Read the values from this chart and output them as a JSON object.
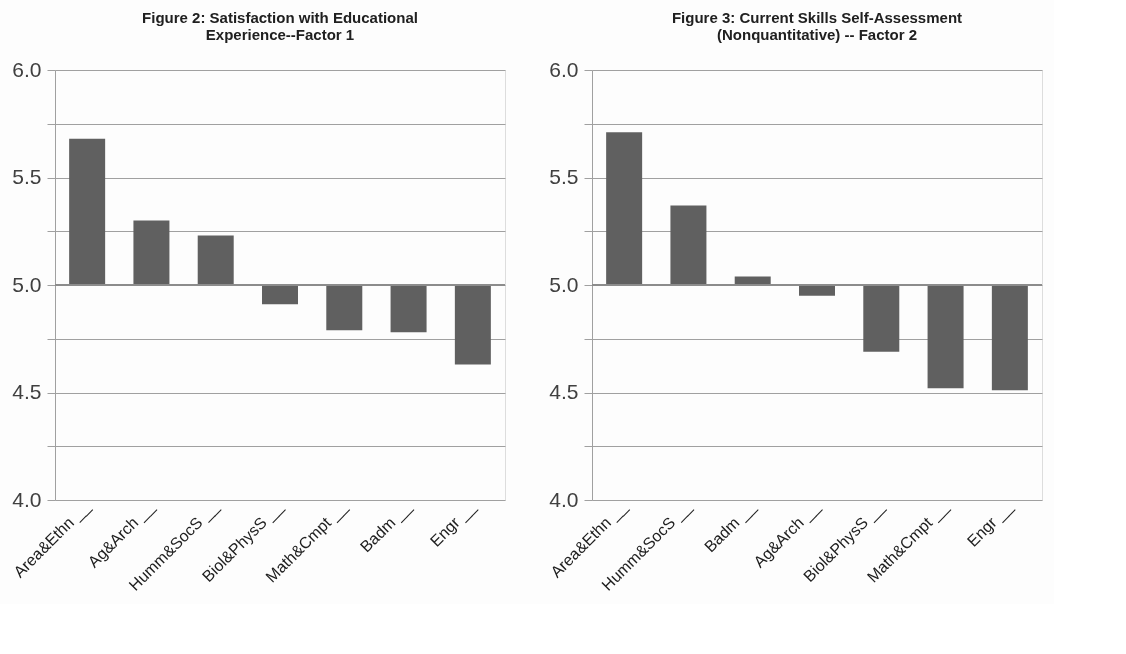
{
  "chart_data": [
    {
      "type": "bar",
      "title": [
        "Figure 2: Satisfaction with Educational",
        "Experience--Factor 1"
      ],
      "categories": [
        "Area&Ethn __",
        "Ag&Arch __",
        "Humm&SocS __",
        "Biol&PhysS __",
        "Math&Cmpt __",
        "Badm __",
        "Engr __"
      ],
      "base": [
        5.0,
        5.0,
        5.0,
        5.0,
        5.0,
        5.0,
        5.0
      ],
      "values": [
        0.68,
        0.3,
        0.23,
        -0.09,
        -0.21,
        -0.22,
        -0.37
      ],
      "color": "#606060",
      "ylim": [
        4.0,
        6.0
      ],
      "yticks": [
        {
          "value": 4,
          "label": "4.0"
        },
        {
          "value": 4.25,
          "label": null
        },
        {
          "value": 4.5,
          "label": "4.5"
        },
        {
          "value": 4.75,
          "label": null
        },
        {
          "value": 5,
          "label": "5.0"
        },
        {
          "value": 5.25,
          "label": null
        },
        {
          "value": 5.5,
          "label": "5.5"
        },
        {
          "value": 5.75,
          "label": null
        },
        {
          "value": 6,
          "label": "6.0"
        }
      ],
      "grid": "y",
      "ref_lines": [
        {
          "axis": "y",
          "value": 5.0,
          "label": null,
          "color": "#8c8c8c"
        }
      ]
    },
    {
      "type": "bar",
      "title": [
        "Figure 3: Current Skills Self-Assessment",
        "(Nonquantitative) -- Factor 2"
      ],
      "categories": [
        "Area&Ethn __",
        "Humm&SocS __",
        "Badm __",
        "Ag&Arch __",
        "Biol&PhysS __",
        "Math&Cmpt __",
        "Engr __"
      ],
      "base": [
        5.0,
        5.0,
        5.0,
        5.0,
        5.0,
        5.0,
        5.0
      ],
      "values": [
        0.71,
        0.37,
        0.04,
        -0.05,
        -0.31,
        -0.48,
        -0.49
      ],
      "color": "#606060",
      "ylim": [
        4.0,
        6.0
      ],
      "yticks": [
        {
          "value": 4,
          "label": "4.0"
        },
        {
          "value": 4.25,
          "label": null
        },
        {
          "value": 4.5,
          "label": "4.5"
        },
        {
          "value": 4.75,
          "label": null
        },
        {
          "value": 5,
          "label": "5.0"
        },
        {
          "value": 5.25,
          "label": null
        },
        {
          "value": 5.5,
          "label": "5.5"
        },
        {
          "value": 5.75,
          "label": null
        },
        {
          "value": 6,
          "label": "6.0"
        }
      ],
      "grid": "y",
      "ref_lines": [
        {
          "axis": "y",
          "value": 5.0,
          "label": null,
          "color": "#8c8c8c"
        }
      ]
    }
  ]
}
